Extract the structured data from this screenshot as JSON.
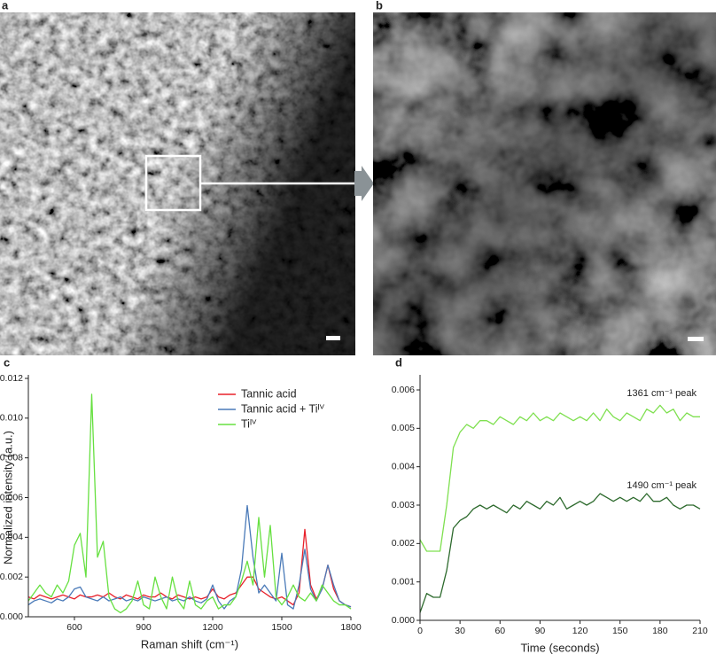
{
  "panels": [
    {
      "label": "a"
    },
    {
      "label": "b"
    }
  ],
  "chart_data": [
    {
      "type": "line",
      "panel_label": "c",
      "x_label": "Raman shift (cm⁻¹)",
      "y_label": "Normalized intensity (a.u.)",
      "xlim": [
        400,
        1800
      ],
      "xticks": [
        600,
        900,
        1200,
        1500,
        1800
      ],
      "ylim": [
        0,
        0.012
      ],
      "yticks": [
        {
          "value": 0,
          "label": "0.000"
        },
        {
          "value": 0.002,
          "label": "0.002"
        },
        {
          "value": 0.004,
          "label": "0.004"
        },
        {
          "value": 0.006,
          "label": "0.006"
        },
        {
          "value": 0.008,
          "label": "0.008"
        },
        {
          "value": 0.01,
          "label": "0.010"
        },
        {
          "value": 0.012,
          "label": "0.012"
        }
      ],
      "legend": "upper right",
      "x": [
        400,
        425,
        450,
        475,
        500,
        525,
        550,
        575,
        600,
        625,
        650,
        675,
        700,
        725,
        750,
        775,
        800,
        825,
        850,
        875,
        900,
        925,
        950,
        975,
        1000,
        1025,
        1050,
        1075,
        1100,
        1125,
        1150,
        1175,
        1200,
        1225,
        1250,
        1275,
        1300,
        1325,
        1350,
        1375,
        1400,
        1425,
        1450,
        1475,
        1500,
        1525,
        1550,
        1575,
        1600,
        1625,
        1650,
        1675,
        1700,
        1725,
        1750,
        1775,
        1800
      ],
      "series": [
        {
          "name": "Tannic acid",
          "color": "#e8202a",
          "values": [
            0.001,
            0.0009,
            0.0011,
            0.001,
            0.0009,
            0.001,
            0.0011,
            0.001,
            0.0009,
            0.0011,
            0.001,
            0.001,
            0.0011,
            0.001,
            0.0012,
            0.001,
            0.0009,
            0.0011,
            0.001,
            0.0009,
            0.0011,
            0.001,
            0.001,
            0.0012,
            0.001,
            0.0009,
            0.0011,
            0.001,
            0.0009,
            0.001,
            0.0009,
            0.001,
            0.0014,
            0.001,
            0.0009,
            0.0011,
            0.0012,
            0.0016,
            0.002,
            0.002,
            0.0014,
            0.0012,
            0.001,
            0.0009,
            0.001,
            0.0008,
            0.0006,
            0.0012,
            0.0044,
            0.0016,
            0.0009,
            0.0014,
            0.0026,
            0.0014,
            0.0008,
            0.0006,
            0.0005
          ]
        },
        {
          "name": "Tannic acid + Tiᴵⱽ",
          "color": "#4a7ab8",
          "values": [
            0.0006,
            0.0008,
            0.0009,
            0.0008,
            0.0007,
            0.0009,
            0.0008,
            0.001,
            0.0014,
            0.0015,
            0.001,
            0.0009,
            0.0008,
            0.001,
            0.0008,
            0.0009,
            0.001,
            0.0008,
            0.0009,
            0.0008,
            0.001,
            0.0009,
            0.0008,
            0.0009,
            0.001,
            0.0008,
            0.0009,
            0.0008,
            0.001,
            0.0008,
            0.0007,
            0.0009,
            0.0016,
            0.0008,
            0.0004,
            0.0008,
            0.001,
            0.0024,
            0.0056,
            0.003,
            0.0012,
            0.0016,
            0.0012,
            0.0008,
            0.0032,
            0.0006,
            0.0004,
            0.0016,
            0.0034,
            0.0014,
            0.0008,
            0.0014,
            0.0026,
            0.0016,
            0.0008,
            0.0006,
            0.0005
          ]
        },
        {
          "name": "Tiᴵⱽ",
          "color": "#66e040",
          "values": [
            0.0008,
            0.0012,
            0.0016,
            0.0012,
            0.001,
            0.0016,
            0.0012,
            0.0018,
            0.0036,
            0.0042,
            0.002,
            0.0112,
            0.003,
            0.0038,
            0.001,
            0.0004,
            0.0002,
            0.0004,
            0.0008,
            0.0018,
            0.0006,
            0.0004,
            0.002,
            0.001,
            0.0004,
            0.002,
            0.0008,
            0.0004,
            0.0018,
            0.0006,
            0.0004,
            0.0008,
            0.001,
            0.0004,
            0.0006,
            0.0006,
            0.001,
            0.0018,
            0.0028,
            0.0016,
            0.005,
            0.002,
            0.0046,
            0.001,
            0.0006,
            0.001,
            0.0016,
            0.001,
            0.0008,
            0.0012,
            0.0008,
            0.0016,
            0.0012,
            0.0008,
            0.0006,
            0.0006,
            0.0004
          ]
        }
      ]
    },
    {
      "type": "line",
      "panel_label": "d",
      "x_label": "Time (seconds)",
      "xlim": [
        0,
        210
      ],
      "xticks": [
        0,
        30,
        60,
        90,
        120,
        150,
        180,
        210
      ],
      "ylim": [
        0,
        0.0063
      ],
      "yticks": [
        {
          "value": 0,
          "label": "0.000"
        },
        {
          "value": 0.001,
          "label": "0.001"
        },
        {
          "value": 0.002,
          "label": "0.002"
        },
        {
          "value": 0.003,
          "label": "0.003"
        },
        {
          "value": 0.004,
          "label": "0.004"
        },
        {
          "value": 0.005,
          "label": "0.005"
        },
        {
          "value": 0.006,
          "label": "0.006"
        }
      ],
      "annotations": [
        "1361 cm⁻¹ peak",
        "1490 cm⁻¹ peak"
      ],
      "x": [
        0,
        5,
        10,
        15,
        20,
        25,
        30,
        35,
        40,
        45,
        50,
        55,
        60,
        65,
        70,
        75,
        80,
        85,
        90,
        95,
        100,
        105,
        110,
        115,
        120,
        125,
        130,
        135,
        140,
        145,
        150,
        155,
        160,
        165,
        170,
        175,
        180,
        185,
        190,
        195,
        200,
        205,
        210
      ],
      "series": [
        {
          "color": "#7fe050",
          "values": [
            0.0021,
            0.0018,
            0.0018,
            0.0018,
            0.003,
            0.0045,
            0.0049,
            0.0051,
            0.005,
            0.0052,
            0.0052,
            0.0051,
            0.0053,
            0.0052,
            0.0051,
            0.0053,
            0.0052,
            0.0054,
            0.0052,
            0.0053,
            0.0052,
            0.0054,
            0.0053,
            0.0052,
            0.0053,
            0.0052,
            0.0054,
            0.0052,
            0.0055,
            0.0053,
            0.0052,
            0.0054,
            0.0053,
            0.0052,
            0.0055,
            0.0054,
            0.0056,
            0.0054,
            0.0055,
            0.0052,
            0.0054,
            0.0053,
            0.0053
          ]
        },
        {
          "color": "#2d6a2d",
          "values": [
            0.0002,
            0.0007,
            0.0006,
            0.0006,
            0.0013,
            0.0024,
            0.0026,
            0.0027,
            0.0029,
            0.003,
            0.0029,
            0.003,
            0.0029,
            0.0028,
            0.003,
            0.0029,
            0.0031,
            0.003,
            0.0029,
            0.0031,
            0.003,
            0.0032,
            0.0029,
            0.003,
            0.0031,
            0.003,
            0.0031,
            0.0033,
            0.0032,
            0.0031,
            0.0032,
            0.0031,
            0.0032,
            0.0031,
            0.0033,
            0.0031,
            0.0031,
            0.0032,
            0.003,
            0.0029,
            0.003,
            0.003,
            0.0029
          ]
        }
      ]
    }
  ]
}
